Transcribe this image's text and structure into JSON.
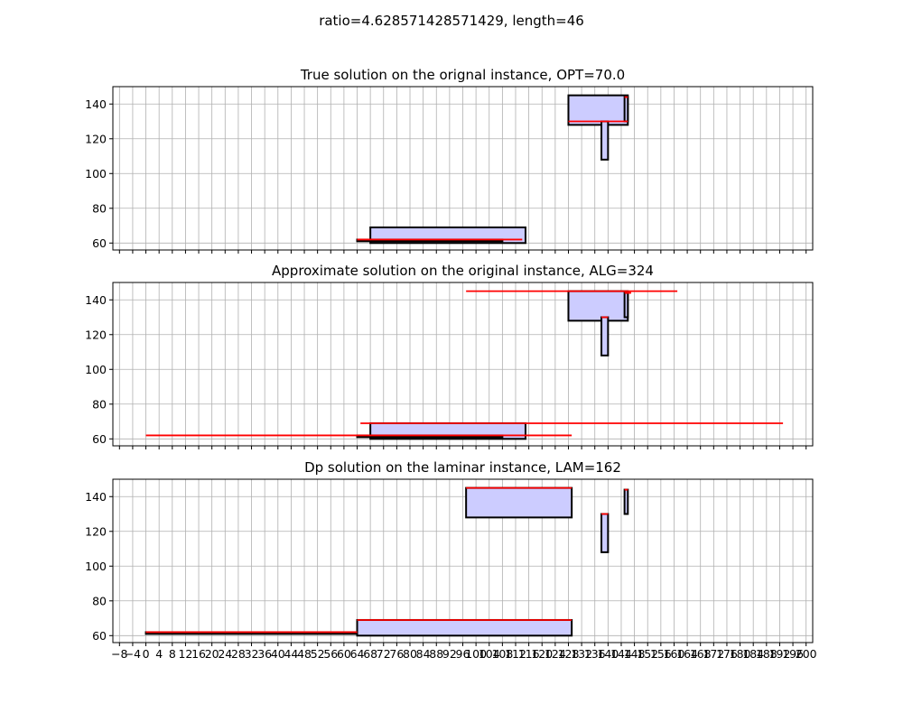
{
  "figure": {
    "suptitle": "ratio=4.628571428571429, length=46"
  },
  "chart_data": [
    {
      "type": "rect-plot",
      "title": "True solution on the orignal instance, OPT=70.0",
      "xlabel": "",
      "ylabel": "",
      "xlim": [
        -10,
        202
      ],
      "ylim": [
        56,
        150
      ],
      "grid": true,
      "rects": [
        {
          "x0": 68,
          "x1": 115,
          "y0": 60,
          "y1": 69
        },
        {
          "x0": 64,
          "x1": 108,
          "y0": 61,
          "y1": 62
        },
        {
          "x0": 128,
          "x1": 146,
          "y0": 128,
          "y1": 145
        },
        {
          "x0": 138,
          "x1": 140,
          "y0": 108,
          "y1": 130
        },
        {
          "x0": 145,
          "x1": 146,
          "y0": 130,
          "y1": 144
        }
      ],
      "red_segments": [
        {
          "x0": 64,
          "x1": 114,
          "y": 62
        },
        {
          "x0": 128,
          "x1": 146,
          "y": 130
        },
        {
          "x0": 145,
          "x1": 146,
          "y": 144
        }
      ]
    },
    {
      "type": "rect-plot",
      "title": "Approximate solution on the original instance, ALG=324",
      "xlabel": "",
      "ylabel": "",
      "xlim": [
        -10,
        202
      ],
      "ylim": [
        56,
        150
      ],
      "grid": true,
      "rects": [
        {
          "x0": 68,
          "x1": 115,
          "y0": 60,
          "y1": 69
        },
        {
          "x0": 64,
          "x1": 108,
          "y0": 61,
          "y1": 62
        },
        {
          "x0": 128,
          "x1": 146,
          "y0": 128,
          "y1": 145
        },
        {
          "x0": 138,
          "x1": 140,
          "y0": 108,
          "y1": 130
        },
        {
          "x0": 145,
          "x1": 146,
          "y0": 130,
          "y1": 144
        }
      ],
      "red_segments": [
        {
          "x0": 0,
          "x1": 129,
          "y": 62
        },
        {
          "x0": 65,
          "x1": 193,
          "y": 69
        },
        {
          "x0": 97,
          "x1": 161,
          "y": 145
        },
        {
          "x0": 138,
          "x1": 140,
          "y": 130
        },
        {
          "x0": 145,
          "x1": 147,
          "y": 144
        }
      ]
    },
    {
      "type": "rect-plot",
      "title": "Dp solution on the laminar instance, LAM=162",
      "xlabel": "",
      "ylabel": "",
      "xlim": [
        -10,
        202
      ],
      "ylim": [
        56,
        150
      ],
      "grid": true,
      "rects": [
        {
          "x0": 0,
          "x1": 64,
          "y0": 61,
          "y1": 62
        },
        {
          "x0": 64,
          "x1": 129,
          "y0": 60,
          "y1": 69
        },
        {
          "x0": 97,
          "x1": 129,
          "y0": 128,
          "y1": 145
        },
        {
          "x0": 138,
          "x1": 140,
          "y0": 108,
          "y1": 130
        },
        {
          "x0": 145,
          "x1": 146,
          "y0": 130,
          "y1": 144
        }
      ],
      "red_segments": [
        {
          "x0": 0,
          "x1": 64,
          "y": 62
        },
        {
          "x0": 64,
          "x1": 129,
          "y": 69
        },
        {
          "x0": 97,
          "x1": 129,
          "y": 145
        },
        {
          "x0": 138,
          "x1": 140,
          "y": 130
        },
        {
          "x0": 145,
          "x1": 146,
          "y": 144
        }
      ]
    }
  ],
  "x_ticks": [
    -8,
    -4,
    0,
    4,
    8,
    12,
    16,
    20,
    24,
    28,
    32,
    36,
    40,
    44,
    48,
    52,
    56,
    60,
    64,
    68,
    72,
    76,
    80,
    84,
    88,
    92,
    96,
    100,
    104,
    108,
    112,
    116,
    120,
    124,
    128,
    132,
    136,
    140,
    144,
    148,
    152,
    156,
    160,
    164,
    168,
    172,
    176,
    180,
    184,
    188,
    192,
    196,
    200
  ],
  "x_tick_labels": [
    "−8",
    "−4",
    "0",
    "4",
    "8",
    "12",
    "16",
    "20",
    "24",
    "28",
    "32",
    "36",
    "40",
    "44",
    "48",
    "52",
    "56",
    "60",
    "64",
    "68",
    "72",
    "76",
    "80",
    "84",
    "88",
    "92",
    "96",
    "100",
    "104",
    "108",
    "112",
    "116",
    "120",
    "124",
    "128",
    "132",
    "136",
    "140",
    "144",
    "148",
    "152",
    "156",
    "160",
    "164",
    "168",
    "172",
    "176",
    "180",
    "184",
    "188",
    "192",
    "196",
    "200"
  ],
  "y_ticks": [
    60,
    80,
    100,
    120,
    140
  ],
  "y_tick_labels": [
    "60",
    "80",
    "100",
    "120",
    "140"
  ],
  "colors": {
    "rect_fill": "#ccccff",
    "rect_edge": "#000000",
    "segment": "#ff0000",
    "grid": "#b0b0b0",
    "axes": "#000000"
  }
}
